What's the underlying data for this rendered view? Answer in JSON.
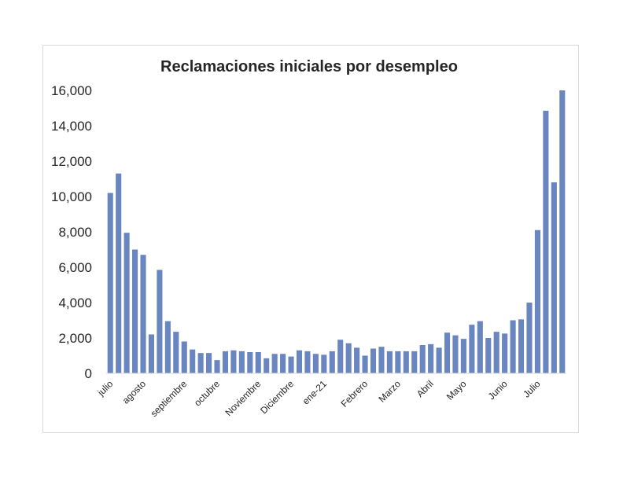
{
  "chart_data": {
    "type": "bar",
    "title": "Reclamaciones iniciales por desempleo",
    "xlabel": "",
    "ylabel": "",
    "ylim": [
      0,
      16000
    ],
    "yticks": [
      "0",
      "2,000",
      "4,000",
      "6,000",
      "8,000",
      "10,000",
      "12,000",
      "14,000",
      "16,000"
    ],
    "bar_color": "#6a86c0",
    "grid": false,
    "legend": "none",
    "month_labels": [
      {
        "label": "julio",
        "index": 0
      },
      {
        "label": "agosto",
        "index": 4
      },
      {
        "label": "septiembre",
        "index": 9
      },
      {
        "label": "octubre",
        "index": 13
      },
      {
        "label": "Noviembre",
        "index": 18
      },
      {
        "label": "Diciembre",
        "index": 22
      },
      {
        "label": "ene-21",
        "index": 26
      },
      {
        "label": "Febrero",
        "index": 31
      },
      {
        "label": "Marzo",
        "index": 35
      },
      {
        "label": "Abril",
        "index": 39
      },
      {
        "label": "Mayo",
        "index": 43
      },
      {
        "label": "Junio",
        "index": 48
      },
      {
        "label": "Julio",
        "index": 52
      }
    ],
    "values": [
      10200,
      11300,
      7950,
      7000,
      6700,
      2200,
      5850,
      2950,
      2350,
      1800,
      1350,
      1150,
      1150,
      750,
      1250,
      1300,
      1250,
      1200,
      1200,
      850,
      1100,
      1100,
      950,
      1300,
      1250,
      1100,
      1050,
      1250,
      1900,
      1700,
      1450,
      1000,
      1400,
      1500,
      1250,
      1250,
      1250,
      1250,
      1600,
      1650,
      1450,
      2300,
      2150,
      1950,
      2750,
      2950,
      2000,
      2350,
      2250,
      3000,
      3050,
      4000,
      8100,
      14850,
      10800,
      16000
    ]
  }
}
